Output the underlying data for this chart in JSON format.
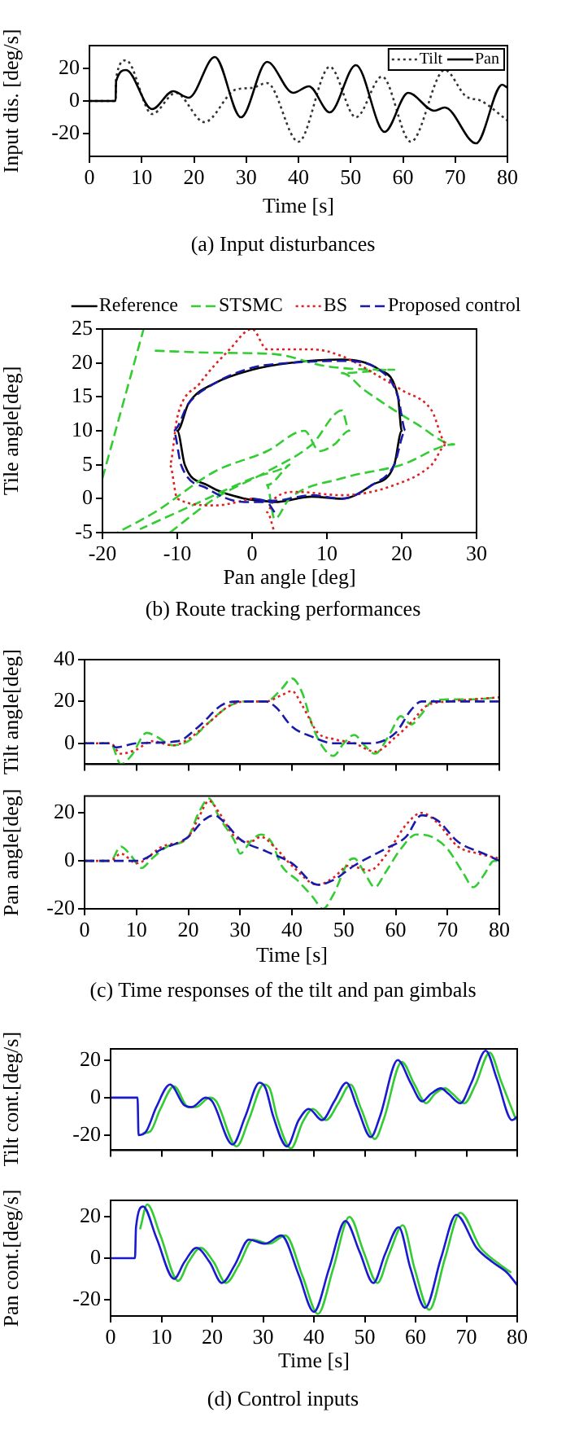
{
  "chart_data": [
    {
      "type": "line",
      "xlabel": "Time [s]",
      "ylabel": "Input dis. [deg/s]",
      "annotations": [
        "(a)  Input  disturbances"
      ],
      "xlim": [
        0,
        80
      ],
      "ylim": [
        -34,
        34
      ],
      "xticks": [
        0,
        10,
        20,
        30,
        40,
        50,
        60,
        70,
        80
      ],
      "yticks": [
        -20,
        0,
        20
      ],
      "legend": "top right",
      "series": [
        {
          "name": "Tilt",
          "color": "#333333",
          "line_style": "dotted",
          "x": [
            0,
            5,
            5.1,
            7,
            12,
            16.5,
            22,
            28,
            31,
            34,
            40,
            46,
            51,
            56,
            61.5,
            68,
            72,
            75,
            80
          ],
          "values": [
            0,
            0,
            14,
            25,
            -8,
            5,
            -13,
            7,
            8,
            11,
            -25,
            21,
            -10,
            15,
            -25,
            19,
            3,
            0,
            -12
          ]
        },
        {
          "name": "Pan",
          "color": "#000000",
          "line_style": "solid",
          "x": [
            0,
            5,
            5.1,
            7,
            12,
            16,
            19,
            24,
            29,
            34,
            39,
            42,
            46,
            51,
            56.5,
            61,
            66,
            68,
            74,
            79,
            80
          ],
          "values": [
            0,
            0,
            12,
            19,
            -5,
            6,
            2,
            27,
            -10,
            24,
            5,
            9,
            -7,
            22,
            -19,
            5,
            -6,
            -4,
            -26,
            10,
            8
          ]
        }
      ]
    },
    {
      "type": "line",
      "xlabel": "Pan angle [deg]",
      "ylabel": "Tile angle[deg]",
      "annotations": [
        "(b)  Route  tracking  performances"
      ],
      "xlim": [
        -20,
        30
      ],
      "ylim": [
        -5,
        25
      ],
      "xticks": [
        -20,
        -10,
        0,
        10,
        20,
        30
      ],
      "yticks": [
        -5,
        0,
        5,
        10,
        15,
        20,
        25
      ],
      "legend": "top",
      "series": [
        {
          "name": "Reference",
          "color": "#000000",
          "line_style": "solid",
          "x": [
            0,
            3,
            8,
            12,
            16,
            19,
            20,
            19.5,
            17,
            12,
            5,
            0,
            -5,
            -8.5,
            -10,
            -9,
            -6,
            -1,
            3
          ],
          "values": [
            0,
            -0.5,
            0.3,
            0,
            2,
            5,
            10,
            15,
            19,
            20.5,
            20,
            19,
            17,
            14,
            10,
            5,
            2,
            0,
            -0.5
          ]
        },
        {
          "name": "STSMC",
          "color": "#33cc33",
          "line_style": "dashed",
          "x": [
            -20,
            -14.5,
            null,
            -13,
            -5,
            3,
            10,
            19,
            12,
            15,
            22,
            27,
            20,
            12,
            5,
            3,
            2,
            5,
            0,
            -8,
            -15,
            null,
            -11,
            -5,
            2,
            8,
            12,
            13,
            11,
            9,
            7,
            2,
            -5,
            -13,
            -18
          ],
          "values": [
            3,
            25,
            null,
            21.8,
            21.5,
            21.3,
            19.5,
            19,
            18.5,
            16,
            11,
            8,
            5,
            3,
            0,
            -3,
            2,
            5,
            3,
            -1,
            -4.5,
            null,
            -5,
            0,
            4,
            8,
            13,
            10,
            8,
            7,
            10,
            7,
            4,
            -2,
            -5
          ]
        },
        {
          "name": "BS",
          "color": "#dd2222",
          "line_style": "dotted",
          "x": [
            0,
            -5,
            -10,
            -11,
            -10,
            -7,
            -3,
            0,
            2,
            8,
            12,
            17,
            20,
            24,
            26,
            24,
            19,
            12,
            6,
            3,
            2,
            3
          ],
          "values": [
            0,
            -1,
            0,
            5,
            12,
            17,
            22,
            25,
            22,
            22,
            21,
            18,
            16,
            13,
            8,
            5,
            2,
            0.5,
            1,
            0,
            -2,
            -5
          ]
        },
        {
          "name": "Proposed control",
          "color": "#1a1aaa",
          "line_style": "dashed",
          "x": [
            3,
            2,
            0,
            3,
            8,
            12,
            16,
            19,
            20.5,
            19.5,
            17,
            12,
            5,
            0,
            -5,
            -8.5,
            -10.5,
            -9.5,
            -6,
            -1,
            3
          ],
          "values": [
            -2,
            -0.5,
            0,
            -0.3,
            0.5,
            0,
            2,
            5,
            10,
            15,
            19,
            20.3,
            20,
            19.3,
            17,
            14,
            10,
            5,
            1.5,
            -0.5,
            -0.5
          ]
        }
      ]
    },
    {
      "type": "line",
      "ylabel": "Tilt angle[deg]",
      "xlim": [
        0,
        80
      ],
      "ylim": [
        -10,
        40
      ],
      "xticks": [
        0,
        10,
        20,
        30,
        40,
        50,
        60,
        70,
        80
      ],
      "yticks": [
        0,
        20,
        40
      ],
      "tick_labels": "y",
      "series": [
        {
          "color": "#33cc33",
          "line_style": "dashed",
          "x": [
            0,
            5,
            7,
            9,
            12,
            14,
            17,
            20,
            24,
            28,
            31,
            35,
            38,
            40,
            42,
            44,
            46,
            48,
            50,
            52,
            54,
            56,
            59,
            61,
            63,
            65,
            67,
            70,
            75,
            80
          ],
          "values": [
            0,
            0,
            -10,
            -6,
            5,
            3,
            -1,
            1,
            10,
            18,
            20,
            20,
            26,
            31,
            24,
            8,
            -2,
            -6,
            0,
            4,
            -1,
            -5,
            5,
            13,
            9,
            14,
            20,
            21,
            21,
            22
          ]
        },
        {
          "color": "#dd2222",
          "line_style": "dotted",
          "x": [
            0,
            5,
            7,
            10,
            13,
            17,
            20,
            24,
            28,
            31,
            35,
            38,
            40,
            42,
            45,
            48,
            52,
            56,
            60,
            63,
            66,
            70,
            75,
            80
          ],
          "values": [
            0,
            0,
            -5,
            -3,
            1,
            -1,
            2,
            10,
            18,
            20,
            20,
            23,
            25,
            18,
            5,
            2,
            0,
            -4,
            3,
            10,
            18,
            20,
            21,
            22
          ]
        },
        {
          "color": "#1a1aaa",
          "line_style": "dashed",
          "x": [
            0,
            5,
            6,
            10,
            18,
            22,
            27,
            30,
            35,
            37,
            40,
            44,
            48,
            55,
            60,
            63,
            65,
            80
          ],
          "values": [
            0,
            0,
            -2,
            0,
            1,
            8,
            19,
            20,
            20,
            17,
            8,
            3,
            0,
            0,
            5,
            16,
            20,
            20
          ]
        }
      ]
    },
    {
      "type": "line",
      "xlabel": "Time [s]",
      "ylabel": "Pan angle[deg]",
      "annotations": [
        "(c)  Time  responses  of  the  tilt  and  pan  gimbals"
      ],
      "xlim": [
        0,
        80
      ],
      "ylim": [
        -20,
        27
      ],
      "xticks": [
        0,
        10,
        20,
        30,
        40,
        50,
        60,
        70,
        80
      ],
      "yticks": [
        -20,
        0,
        20
      ],
      "series": [
        {
          "color": "#33cc33",
          "line_style": "dashed",
          "x": [
            0,
            5,
            7,
            9,
            11,
            13,
            16,
            20,
            22,
            24,
            26,
            29,
            30,
            32,
            34,
            36,
            38,
            41,
            44,
            46,
            48,
            51,
            52,
            54,
            56,
            58,
            61,
            64,
            67,
            70,
            73,
            75,
            77,
            79,
            80
          ],
          "values": [
            0,
            0,
            6,
            2,
            -3,
            1,
            6,
            10,
            20,
            26,
            18,
            8,
            3,
            8,
            11,
            8,
            -2,
            -8,
            -15,
            -20,
            -14,
            0,
            1,
            -5,
            -11,
            -5,
            5,
            11,
            10,
            5,
            -5,
            -11,
            -6,
            0,
            0
          ]
        },
        {
          "color": "#dd2222",
          "line_style": "dotted",
          "x": [
            0,
            5,
            7,
            10,
            15,
            20,
            22,
            24,
            26,
            29,
            32,
            34,
            37,
            40,
            45,
            48,
            51,
            55,
            58,
            62,
            65,
            68,
            72,
            76,
            80
          ],
          "values": [
            0,
            0,
            3,
            -1,
            6,
            10,
            18,
            25,
            20,
            10,
            8,
            10,
            5,
            -2,
            -10,
            -7,
            -2,
            -4,
            2,
            15,
            20,
            16,
            6,
            3,
            1
          ]
        },
        {
          "color": "#1a1aaa",
          "line_style": "dashed",
          "x": [
            0,
            5,
            10,
            15,
            20,
            23,
            25,
            27,
            30,
            35,
            40,
            45,
            48,
            52,
            58,
            62,
            65,
            68,
            72,
            77,
            80
          ],
          "values": [
            0,
            0,
            0,
            5,
            10,
            17,
            19,
            16,
            9,
            4,
            -1,
            -10,
            -8,
            -2,
            5,
            10,
            19,
            17,
            8,
            3,
            0
          ]
        }
      ]
    },
    {
      "type": "line",
      "ylabel": "Tilt cont.[deg/s]",
      "xlim": [
        0,
        80
      ],
      "ylim": [
        -28,
        26
      ],
      "xticks": [
        0,
        10,
        20,
        30,
        40,
        50,
        60,
        70,
        80
      ],
      "yticks": [
        -20,
        0,
        20
      ],
      "tick_labels": "y",
      "series": [
        {
          "color": "#33cc33",
          "line_style": "solid",
          "x": [
            6.3,
            7.8,
            9.8,
            12.5,
            15.3,
            16.8,
            19.5,
            20.8,
            24.8,
            27.3,
            30.1,
            31.3,
            32.8,
            35.5,
            37.8,
            39.8,
            42.4,
            44.8,
            47.2,
            49.3,
            52,
            53.8,
            57.3,
            59.8,
            62.1,
            63.8,
            65.8,
            67.3,
            69.6,
            71.8,
            74.6,
            76.8,
            79.8
          ],
          "values": [
            -19,
            -18,
            -6,
            6,
            -5,
            -5,
            0,
            -2,
            -26,
            -11,
            7,
            5,
            -11,
            -27,
            -13,
            -6,
            -12,
            -3,
            7,
            -6,
            -22,
            -11,
            19,
            7,
            -3,
            2,
            5,
            2,
            -3,
            7,
            24,
            9,
            -12
          ]
        },
        {
          "color": "#1a1ad0",
          "line_style": "solid",
          "x": [
            0,
            5.3,
            5.5,
            7,
            9,
            11.7,
            14.5,
            16,
            18.7,
            20,
            24,
            26.5,
            29.3,
            30.5,
            32,
            34.7,
            37,
            39,
            41.6,
            44,
            46.4,
            48.5,
            51.2,
            53,
            56.5,
            59,
            61.3,
            63,
            65,
            66.5,
            68.8,
            71,
            73.8,
            76,
            79,
            80
          ],
          "values": [
            0,
            0,
            -20,
            -18,
            -5,
            7,
            -4,
            -5,
            0,
            -2,
            -25,
            -10,
            8,
            5,
            -10,
            -26,
            -12,
            -6,
            -12,
            -2,
            8,
            -5,
            -21,
            -10,
            20,
            8,
            -2,
            2,
            5,
            2,
            -3,
            8,
            25,
            10,
            -12,
            -10
          ]
        }
      ]
    },
    {
      "type": "line",
      "xlabel": "Time [s]",
      "ylabel": "Pan cont.[deg/s]",
      "annotations": [
        "(d)  Control  inputs"
      ],
      "xlim": [
        0,
        80
      ],
      "ylim": [
        -28,
        28
      ],
      "xticks": [
        0,
        10,
        20,
        30,
        40,
        50,
        60,
        70,
        80
      ],
      "yticks": [
        -20,
        0,
        20
      ],
      "series": [
        {
          "color": "#33cc33",
          "line_style": "solid",
          "x": [
            5.8,
            7.2,
            9.8,
            13.3,
            15.3,
            17.7,
            20.3,
            22.7,
            25.3,
            28,
            31.2,
            34.4,
            37.8,
            40.8,
            43.8,
            47,
            49.8,
            52.5,
            54.8,
            57.5,
            59.8,
            62.7,
            65.8,
            68.8,
            72.8,
            76,
            78.8
          ],
          "values": [
            14,
            26,
            11,
            -11,
            -2,
            5,
            -2,
            -12,
            -3,
            9,
            7,
            11,
            -9,
            -27,
            -5,
            20,
            3,
            -12,
            2,
            16,
            -5,
            -25,
            0,
            22,
            5,
            -2,
            -7
          ]
        },
        {
          "color": "#1a1ad0",
          "line_style": "solid",
          "x": [
            0,
            4.8,
            5,
            6.4,
            9,
            12.5,
            14.5,
            16.9,
            19.5,
            21.9,
            24.5,
            27.2,
            30.4,
            33.6,
            37,
            40,
            43,
            46.2,
            49,
            51.7,
            54,
            56.7,
            59,
            61.9,
            65,
            68,
            72,
            75.2,
            78,
            80
          ],
          "values": [
            0,
            0,
            15,
            25,
            10,
            -10,
            -2,
            5,
            -2,
            -12,
            -3,
            9,
            7,
            11,
            -8,
            -26,
            -5,
            18,
            3,
            -12,
            2,
            15,
            -5,
            -24,
            0,
            21,
            5,
            -2,
            -7,
            -13
          ]
        }
      ]
    }
  ]
}
